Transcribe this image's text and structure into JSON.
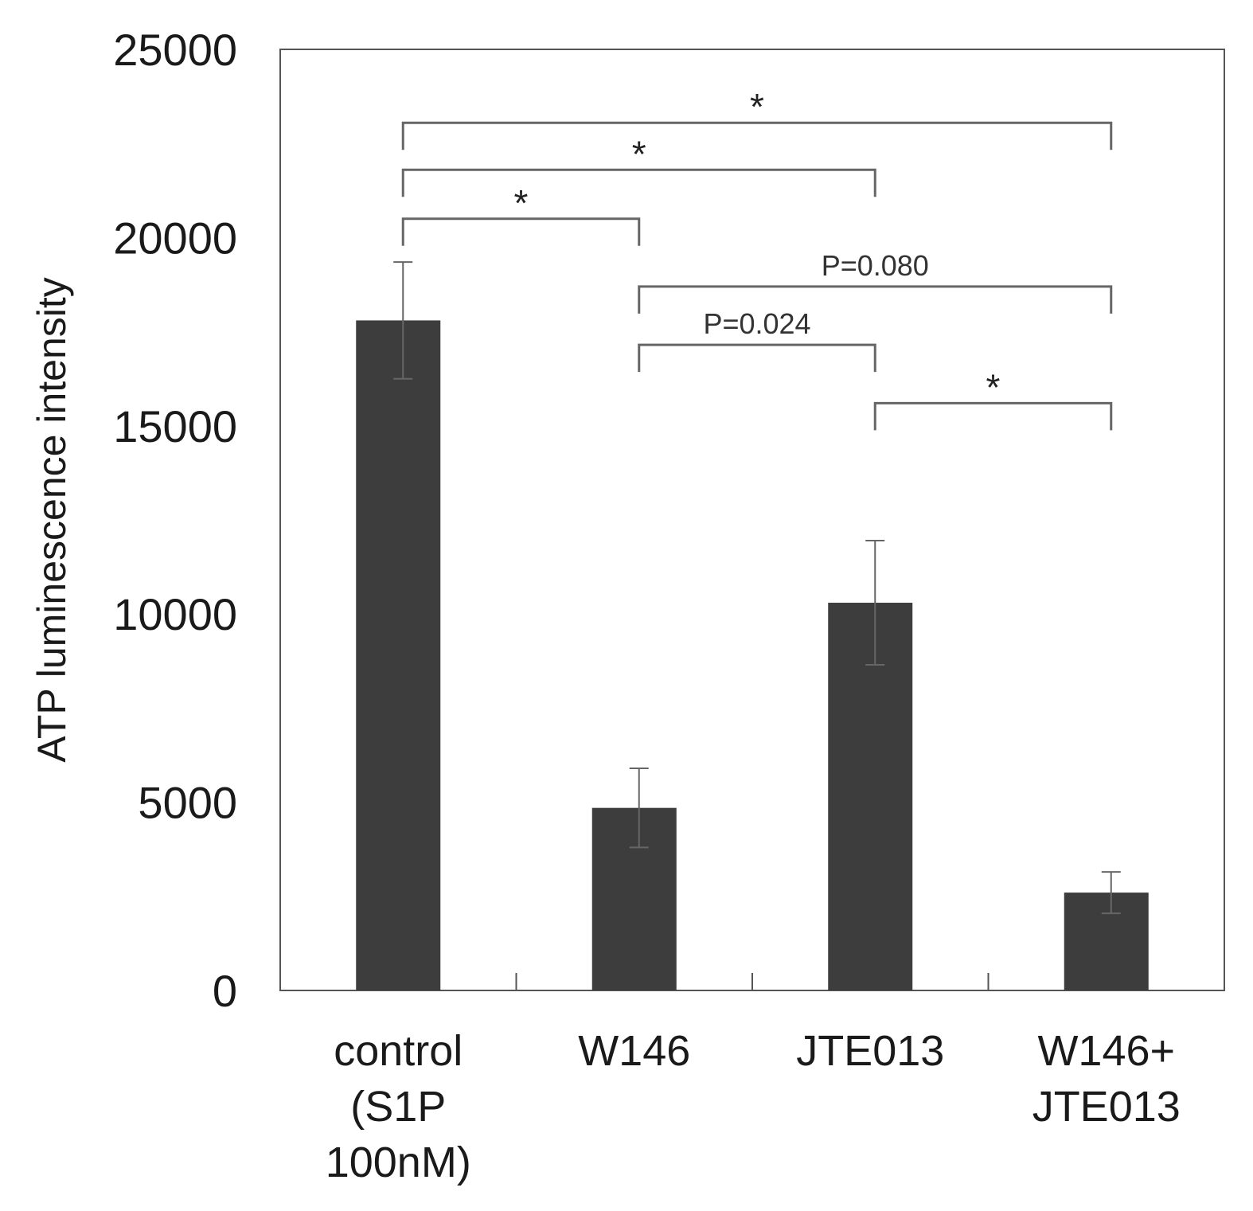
{
  "chart_data": {
    "type": "bar",
    "title": "",
    "xlabel": "",
    "ylabel": "ATP luminescence intensity",
    "ylim": [
      0,
      25000
    ],
    "yticks": [
      "0",
      "5000",
      "10000",
      "15000",
      "20000",
      "25000"
    ],
    "categories": [
      [
        "control",
        "(S1P",
        "100nM)"
      ],
      [
        "W146"
      ],
      [
        "JTE013"
      ],
      [
        "W146+",
        "JTE013"
      ]
    ],
    "values": [
      17800,
      4850,
      10300,
      2600
    ],
    "errors": [
      1550,
      1050,
      1650,
      550
    ],
    "bar_color": "#3d3d3d",
    "grid": false,
    "significance": [
      {
        "from": 0,
        "to": 1,
        "label": "*",
        "level": 20500
      },
      {
        "from": 0,
        "to": 2,
        "label": "*",
        "level": 21800
      },
      {
        "from": 0,
        "to": 3,
        "label": "*",
        "level": 23050
      },
      {
        "from": 1,
        "to": 3,
        "label": "P=0.080",
        "level": 18700
      },
      {
        "from": 1,
        "to": 2,
        "label": "P=0.024",
        "level": 17150
      },
      {
        "from": 2,
        "to": 3,
        "label": "*",
        "level": 15600
      }
    ]
  }
}
